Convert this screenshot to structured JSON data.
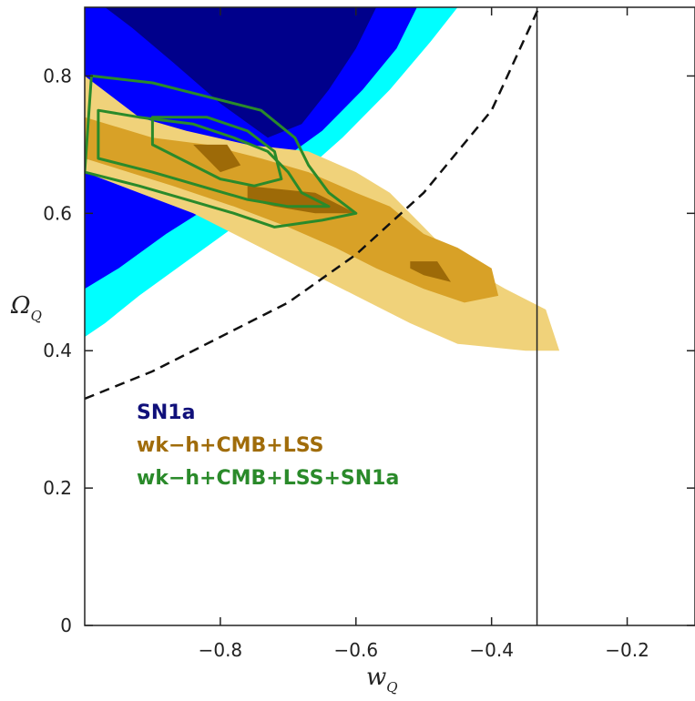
{
  "chart_data": {
    "type": "contour",
    "xlabel": "w",
    "xlabel_sub": "Q",
    "ylabel": "Ω",
    "ylabel_sub": "Q",
    "xlim": [
      -1.0,
      -0.1
    ],
    "ylim": [
      0.0,
      0.9
    ],
    "x_ticks": [
      -0.8,
      -0.6,
      -0.4,
      -0.2
    ],
    "y_ticks": [
      0,
      0.2,
      0.4,
      0.6,
      0.8
    ],
    "x_tick_labels": [
      "−0.8",
      "−0.6",
      "−0.4",
      "−0.2"
    ],
    "y_tick_labels": [
      "0",
      "0.2",
      "0.4",
      "0.6",
      "0.8"
    ],
    "vertical_line_x": -0.333,
    "dashed_curve": [
      [
        -1.0,
        0.33
      ],
      [
        -0.9,
        0.37
      ],
      [
        -0.8,
        0.42
      ],
      [
        -0.7,
        0.47
      ],
      [
        -0.6,
        0.54
      ],
      [
        -0.5,
        0.63
      ],
      [
        -0.4,
        0.75
      ],
      [
        -0.33,
        0.9
      ]
    ],
    "legend": [
      {
        "label": "SN1a",
        "color": "#10107a"
      },
      {
        "label": "wk−h+CMB+LSS",
        "color": "#a06c0a"
      },
      {
        "label": "wk−h+CMB+LSS+SN1a",
        "color": "#2a8a2a"
      }
    ],
    "series": [
      {
        "name": "SN1a",
        "colors": [
          "#00ffff",
          "#0000ff",
          "#00008b"
        ],
        "contours": [
          [
            [
              -1.0,
              0.42
            ],
            [
              -0.97,
              0.44
            ],
            [
              -0.92,
              0.48
            ],
            [
              -0.85,
              0.53
            ],
            [
              -0.78,
              0.58
            ],
            [
              -0.7,
              0.64
            ],
            [
              -0.62,
              0.71
            ],
            [
              -0.55,
              0.78
            ],
            [
              -0.49,
              0.85
            ],
            [
              -0.45,
              0.9
            ],
            [
              -1.0,
              0.9
            ]
          ],
          [
            [
              -1.0,
              0.49
            ],
            [
              -0.95,
              0.52
            ],
            [
              -0.88,
              0.57
            ],
            [
              -0.8,
              0.62
            ],
            [
              -0.72,
              0.67
            ],
            [
              -0.65,
              0.72
            ],
            [
              -0.59,
              0.78
            ],
            [
              -0.54,
              0.84
            ],
            [
              -0.51,
              0.9
            ],
            [
              -1.0,
              0.9
            ]
          ],
          [
            [
              -0.97,
              0.9
            ],
            [
              -0.93,
              0.87
            ],
            [
              -0.87,
              0.82
            ],
            [
              -0.8,
              0.76
            ],
            [
              -0.73,
              0.71
            ],
            [
              -0.68,
              0.73
            ],
            [
              -0.64,
              0.78
            ],
            [
              -0.6,
              0.84
            ],
            [
              -0.57,
              0.9
            ]
          ]
        ]
      },
      {
        "name": "wk−h+CMB+LSS",
        "colors": [
          "#f0d27a",
          "#d8a127",
          "#9d6a08"
        ],
        "contours": [
          [
            [
              -1.0,
              0.8
            ],
            [
              -0.92,
              0.74
            ],
            [
              -0.85,
              0.72
            ],
            [
              -0.76,
              0.7
            ],
            [
              -0.67,
              0.69
            ],
            [
              -0.6,
              0.66
            ],
            [
              -0.55,
              0.63
            ],
            [
              -0.5,
              0.58
            ],
            [
              -0.45,
              0.53
            ],
            [
              -0.38,
              0.49
            ],
            [
              -0.32,
              0.46
            ],
            [
              -0.3,
              0.4
            ],
            [
              -0.35,
              0.4
            ],
            [
              -0.45,
              0.41
            ],
            [
              -0.52,
              0.44
            ],
            [
              -0.6,
              0.48
            ],
            [
              -0.68,
              0.52
            ],
            [
              -0.76,
              0.56
            ],
            [
              -0.84,
              0.6
            ],
            [
              -0.92,
              0.63
            ],
            [
              -1.0,
              0.66
            ]
          ],
          [
            [
              -1.0,
              0.74
            ],
            [
              -0.9,
              0.71
            ],
            [
              -0.82,
              0.7
            ],
            [
              -0.74,
              0.68
            ],
            [
              -0.67,
              0.66
            ],
            [
              -0.6,
              0.63
            ],
            [
              -0.55,
              0.61
            ],
            [
              -0.5,
              0.57
            ],
            [
              -0.45,
              0.55
            ],
            [
              -0.4,
              0.52
            ],
            [
              -0.39,
              0.48
            ],
            [
              -0.44,
              0.47
            ],
            [
              -0.5,
              0.49
            ],
            [
              -0.57,
              0.52
            ],
            [
              -0.63,
              0.55
            ],
            [
              -0.7,
              0.58
            ],
            [
              -0.78,
              0.61
            ],
            [
              -0.87,
              0.64
            ],
            [
              -1.0,
              0.68
            ]
          ],
          [
            [
              -0.84,
              0.7
            ],
            [
              -0.79,
              0.7
            ],
            [
              -0.77,
              0.67
            ],
            [
              -0.8,
              0.66
            ],
            [
              -0.82,
              0.68
            ]
          ],
          [
            [
              -0.76,
              0.64
            ],
            [
              -0.66,
              0.63
            ],
            [
              -0.6,
              0.6
            ],
            [
              -0.66,
              0.6
            ],
            [
              -0.72,
              0.61
            ],
            [
              -0.76,
              0.62
            ]
          ],
          [
            [
              -0.52,
              0.53
            ],
            [
              -0.48,
              0.53
            ],
            [
              -0.46,
              0.5
            ],
            [
              -0.5,
              0.51
            ],
            [
              -0.52,
              0.52
            ]
          ]
        ]
      },
      {
        "name": "wk−h+CMB+LSS+SN1a",
        "colors": [
          "#2a8a2a"
        ],
        "contours": [
          [
            [
              -0.99,
              0.8
            ],
            [
              -0.9,
              0.79
            ],
            [
              -0.82,
              0.77
            ],
            [
              -0.74,
              0.75
            ],
            [
              -0.69,
              0.71
            ],
            [
              -0.67,
              0.67
            ],
            [
              -0.64,
              0.63
            ],
            [
              -0.6,
              0.6
            ],
            [
              -0.65,
              0.59
            ],
            [
              -0.72,
              0.58
            ],
            [
              -0.78,
              0.6
            ],
            [
              -0.85,
              0.62
            ],
            [
              -0.92,
              0.64
            ],
            [
              -1.0,
              0.66
            ]
          ],
          [
            [
              -0.98,
              0.75
            ],
            [
              -0.92,
              0.74
            ],
            [
              -0.84,
              0.73
            ],
            [
              -0.78,
              0.71
            ],
            [
              -0.73,
              0.69
            ],
            [
              -0.7,
              0.66
            ],
            [
              -0.68,
              0.63
            ],
            [
              -0.64,
              0.61
            ],
            [
              -0.7,
              0.61
            ],
            [
              -0.76,
              0.62
            ],
            [
              -0.83,
              0.64
            ],
            [
              -0.9,
              0.66
            ],
            [
              -0.98,
              0.68
            ]
          ],
          [
            [
              -0.9,
              0.74
            ],
            [
              -0.82,
              0.74
            ],
            [
              -0.76,
              0.72
            ],
            [
              -0.72,
              0.69
            ],
            [
              -0.71,
              0.65
            ],
            [
              -0.75,
              0.64
            ],
            [
              -0.8,
              0.65
            ],
            [
              -0.86,
              0.68
            ],
            [
              -0.9,
              0.7
            ]
          ]
        ]
      }
    ]
  }
}
